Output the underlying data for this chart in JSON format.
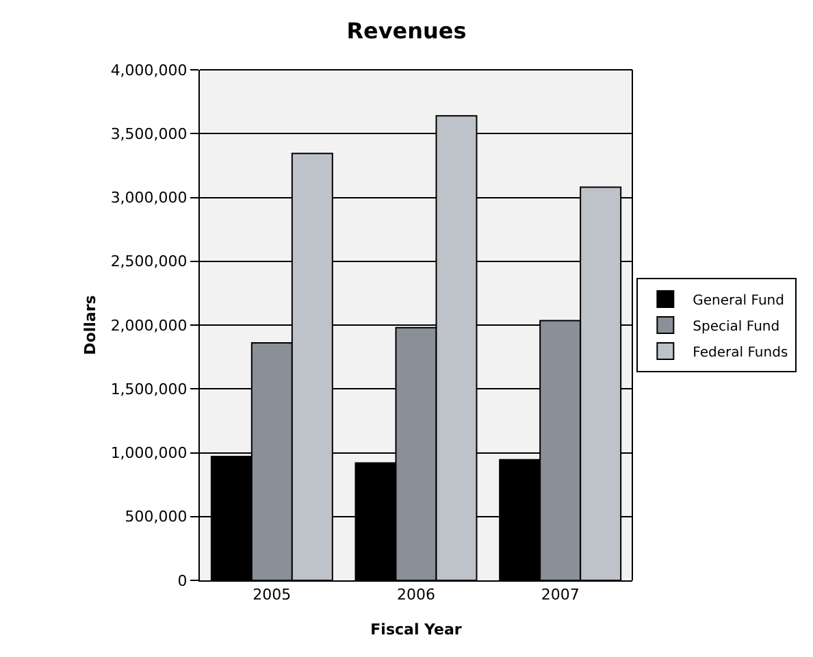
{
  "chart_data": {
    "type": "bar",
    "title": "Revenues",
    "xlabel": "Fiscal Year",
    "ylabel": "Dollars",
    "categories": [
      "2005",
      "2006",
      "2007"
    ],
    "series": [
      {
        "name": "General Fund",
        "color": "#000000",
        "values": [
          970000,
          920000,
          945000
        ]
      },
      {
        "name": "Special Fund",
        "color": "#8a9097",
        "values": [
          1860000,
          1980000,
          2035000
        ]
      },
      {
        "name": "Federal Funds",
        "color": "#bec2c9",
        "values": [
          3345000,
          3640000,
          3080000
        ]
      }
    ],
    "ylim": [
      0,
      4000000
    ],
    "yticks": [
      {
        "value": 0,
        "label": "0"
      },
      {
        "value": 500000,
        "label": "500,000"
      },
      {
        "value": 1000000,
        "label": "1,000,000"
      },
      {
        "value": 1500000,
        "label": "1,500,000"
      },
      {
        "value": 2000000,
        "label": "2,000,000"
      },
      {
        "value": 2500000,
        "label": "2,500,000"
      },
      {
        "value": 3000000,
        "label": "3,000,000"
      },
      {
        "value": 3500000,
        "label": "3,500,000"
      },
      {
        "value": 4000000,
        "label": "4,000,000"
      }
    ],
    "grid": "y",
    "legend": "right"
  }
}
